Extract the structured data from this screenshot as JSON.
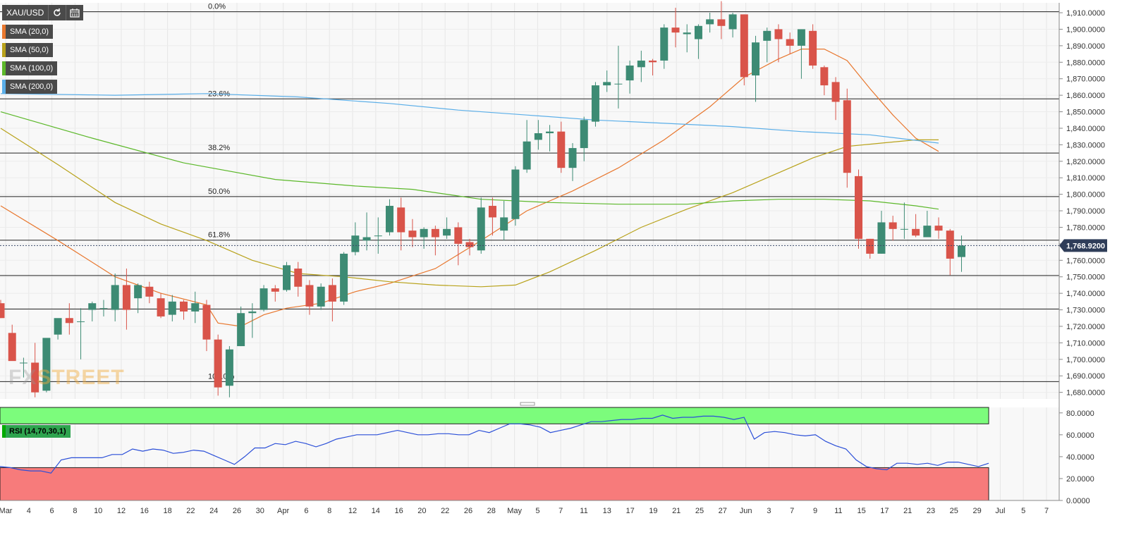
{
  "toolbar": {
    "symbol": "XAU/USD",
    "refresh_icon": "refresh-icon",
    "calendar_icon": "calendar-icon"
  },
  "indicators": [
    {
      "label": "SMA (20,0)",
      "color": "#e8772e"
    },
    {
      "label": "SMA (50,0)",
      "color": "#b8a21a"
    },
    {
      "label": "SMA (100,0)",
      "color": "#5cb82a"
    },
    {
      "label": "SMA (200,0)",
      "color": "#5aaee8"
    }
  ],
  "watermark": {
    "part1": "FX",
    "part2": "STREET"
  },
  "rsi_label": "RSI (14,70,30,1)",
  "chart_data": [
    {
      "type": "candlestick",
      "title": "XAU/USD",
      "ylim": [
        1676,
        1916
      ],
      "y_ticks": [
        "1,680.0000",
        "1,690.0000",
        "1,700.0000",
        "1,710.0000",
        "1,720.0000",
        "1,730.0000",
        "1,740.0000",
        "1,750.0000",
        "1,760.0000",
        "1,770.0000",
        "1,780.0000",
        "1,790.0000",
        "1,800.0000",
        "1,810.0000",
        "1,820.0000",
        "1,830.0000",
        "1,840.0000",
        "1,850.0000",
        "1,860.0000",
        "1,870.0000",
        "1,880.0000",
        "1,890.0000",
        "1,900.0000",
        "1,910.0000"
      ],
      "x_ticks": [
        "Mar",
        "4",
        "6",
        "8",
        "10",
        "12",
        "16",
        "18",
        "22",
        "24",
        "26",
        "30",
        "Apr",
        "6",
        "8",
        "12",
        "14",
        "16",
        "20",
        "22",
        "26",
        "28",
        "May",
        "5",
        "7",
        "11",
        "13",
        "17",
        "19",
        "21",
        "25",
        "27",
        "Jun",
        "3",
        "7",
        "9",
        "11",
        "15",
        "17",
        "21",
        "23",
        "25",
        "29",
        "Jul",
        "5",
        "7"
      ],
      "current_price_label": "1,768.9200",
      "current_price": 1768.92,
      "fibonacci": [
        {
          "label": "0.0%",
          "value": 1910.6
        },
        {
          "label": "23.6%",
          "value": 1857.8
        },
        {
          "label": "38.2%",
          "value": 1825.0
        },
        {
          "label": "50.0%",
          "value": 1798.6
        },
        {
          "label": "61.8%",
          "value": 1772.2
        },
        {
          "label": "",
          "value": 1750.8
        },
        {
          "label": "",
          "value": 1730.5
        },
        {
          "label": "100.0%",
          "value": 1686.5
        }
      ],
      "candles": [
        {
          "o": 1734,
          "h": 1736,
          "l": 1725,
          "c": 1725
        },
        {
          "o": 1716,
          "h": 1721,
          "l": 1700,
          "c": 1699
        },
        {
          "o": 1698,
          "h": 1701,
          "l": 1689,
          "c": 1698
        },
        {
          "o": 1698,
          "h": 1710,
          "l": 1677,
          "c": 1680
        },
        {
          "o": 1681,
          "h": 1712,
          "l": 1680,
          "c": 1713
        },
        {
          "o": 1715,
          "h": 1723,
          "l": 1712,
          "c": 1725
        },
        {
          "o": 1725,
          "h": 1734,
          "l": 1715,
          "c": 1722
        },
        {
          "o": 1723,
          "h": 1731,
          "l": 1700,
          "c": 1723
        },
        {
          "o": 1730,
          "h": 1735,
          "l": 1723,
          "c": 1734
        },
        {
          "o": 1731,
          "h": 1736,
          "l": 1726,
          "c": 1731
        },
        {
          "o": 1730,
          "h": 1752,
          "l": 1723,
          "c": 1745
        },
        {
          "o": 1745,
          "h": 1755,
          "l": 1718,
          "c": 1730
        },
        {
          "o": 1737,
          "h": 1746,
          "l": 1728,
          "c": 1745
        },
        {
          "o": 1744,
          "h": 1747,
          "l": 1734,
          "c": 1738
        },
        {
          "o": 1737,
          "h": 1740,
          "l": 1725,
          "c": 1726
        },
        {
          "o": 1727,
          "h": 1739,
          "l": 1723,
          "c": 1735
        },
        {
          "o": 1735,
          "h": 1736,
          "l": 1724,
          "c": 1729
        },
        {
          "o": 1729,
          "h": 1741,
          "l": 1722,
          "c": 1734
        },
        {
          "o": 1733,
          "h": 1736,
          "l": 1705,
          "c": 1712
        },
        {
          "o": 1712,
          "h": 1715,
          "l": 1678,
          "c": 1683
        },
        {
          "o": 1684,
          "h": 1708,
          "l": 1677,
          "c": 1706
        },
        {
          "o": 1708,
          "h": 1732,
          "l": 1708,
          "c": 1728
        },
        {
          "o": 1728,
          "h": 1734,
          "l": 1713,
          "c": 1729
        },
        {
          "o": 1730,
          "h": 1745,
          "l": 1729,
          "c": 1743
        },
        {
          "o": 1743,
          "h": 1745,
          "l": 1735,
          "c": 1741
        },
        {
          "o": 1742,
          "h": 1759,
          "l": 1741,
          "c": 1757
        },
        {
          "o": 1755,
          "h": 1759,
          "l": 1738,
          "c": 1744
        },
        {
          "o": 1745,
          "h": 1748,
          "l": 1727,
          "c": 1732
        },
        {
          "o": 1732,
          "h": 1746,
          "l": 1730,
          "c": 1744
        },
        {
          "o": 1745,
          "h": 1749,
          "l": 1723,
          "c": 1735
        },
        {
          "o": 1735,
          "h": 1765,
          "l": 1733,
          "c": 1764
        },
        {
          "o": 1765,
          "h": 1783,
          "l": 1763,
          "c": 1775
        },
        {
          "o": 1772,
          "h": 1789,
          "l": 1766,
          "c": 1774
        },
        {
          "o": 1775,
          "h": 1786,
          "l": 1764,
          "c": 1775
        },
        {
          "o": 1777,
          "h": 1797,
          "l": 1775,
          "c": 1793
        },
        {
          "o": 1792,
          "h": 1798,
          "l": 1766,
          "c": 1777
        },
        {
          "o": 1778,
          "h": 1785,
          "l": 1768,
          "c": 1774
        },
        {
          "o": 1774,
          "h": 1780,
          "l": 1767,
          "c": 1779
        },
        {
          "o": 1779,
          "h": 1781,
          "l": 1763,
          "c": 1774
        },
        {
          "o": 1775,
          "h": 1786,
          "l": 1773,
          "c": 1779
        },
        {
          "o": 1780,
          "h": 1783,
          "l": 1757,
          "c": 1770
        },
        {
          "o": 1771,
          "h": 1773,
          "l": 1763,
          "c": 1768
        },
        {
          "o": 1766,
          "h": 1798,
          "l": 1764,
          "c": 1792
        },
        {
          "o": 1793,
          "h": 1798,
          "l": 1775,
          "c": 1786
        },
        {
          "o": 1778,
          "h": 1796,
          "l": 1772,
          "c": 1786
        },
        {
          "o": 1785,
          "h": 1817,
          "l": 1781,
          "c": 1815
        },
        {
          "o": 1815,
          "h": 1845,
          "l": 1813,
          "c": 1832
        },
        {
          "o": 1833,
          "h": 1845,
          "l": 1827,
          "c": 1837
        },
        {
          "o": 1837,
          "h": 1842,
          "l": 1826,
          "c": 1838
        },
        {
          "o": 1838,
          "h": 1844,
          "l": 1813,
          "c": 1816
        },
        {
          "o": 1816,
          "h": 1831,
          "l": 1808,
          "c": 1828
        },
        {
          "o": 1828,
          "h": 1847,
          "l": 1820,
          "c": 1845
        },
        {
          "o": 1844,
          "h": 1868,
          "l": 1841,
          "c": 1866
        },
        {
          "o": 1866,
          "h": 1875,
          "l": 1862,
          "c": 1868
        },
        {
          "o": 1867,
          "h": 1890,
          "l": 1852,
          "c": 1867
        },
        {
          "o": 1869,
          "h": 1881,
          "l": 1861,
          "c": 1878
        },
        {
          "o": 1877,
          "h": 1887,
          "l": 1868,
          "c": 1881
        },
        {
          "o": 1881,
          "h": 1882,
          "l": 1872,
          "c": 1880
        },
        {
          "o": 1881,
          "h": 1903,
          "l": 1876,
          "c": 1901
        },
        {
          "o": 1901,
          "h": 1913,
          "l": 1889,
          "c": 1898
        },
        {
          "o": 1897,
          "h": 1903,
          "l": 1886,
          "c": 1898
        },
        {
          "o": 1894,
          "h": 1903,
          "l": 1882,
          "c": 1902
        },
        {
          "o": 1903,
          "h": 1910,
          "l": 1898,
          "c": 1906
        },
        {
          "o": 1906,
          "h": 1917,
          "l": 1894,
          "c": 1902
        },
        {
          "o": 1900,
          "h": 1910,
          "l": 1895,
          "c": 1909
        },
        {
          "o": 1909,
          "h": 1909,
          "l": 1866,
          "c": 1871
        },
        {
          "o": 1872,
          "h": 1896,
          "l": 1856,
          "c": 1892
        },
        {
          "o": 1893,
          "h": 1901,
          "l": 1880,
          "c": 1899
        },
        {
          "o": 1900,
          "h": 1903,
          "l": 1880,
          "c": 1894
        },
        {
          "o": 1894,
          "h": 1898,
          "l": 1885,
          "c": 1890
        },
        {
          "o": 1890,
          "h": 1900,
          "l": 1870,
          "c": 1900
        },
        {
          "o": 1899,
          "h": 1903,
          "l": 1876,
          "c": 1878
        },
        {
          "o": 1877,
          "h": 1878,
          "l": 1860,
          "c": 1866
        },
        {
          "o": 1868,
          "h": 1871,
          "l": 1845,
          "c": 1856
        },
        {
          "o": 1857,
          "h": 1864,
          "l": 1804,
          "c": 1813
        },
        {
          "o": 1811,
          "h": 1815,
          "l": 1767,
          "c": 1773
        },
        {
          "o": 1773,
          "h": 1773,
          "l": 1761,
          "c": 1764
        },
        {
          "o": 1764,
          "h": 1790,
          "l": 1764,
          "c": 1783
        },
        {
          "o": 1783,
          "h": 1787,
          "l": 1772,
          "c": 1779
        },
        {
          "o": 1779,
          "h": 1795,
          "l": 1773,
          "c": 1779
        },
        {
          "o": 1779,
          "h": 1788,
          "l": 1774,
          "c": 1775
        },
        {
          "o": 1774,
          "h": 1790,
          "l": 1774,
          "c": 1781
        },
        {
          "o": 1781,
          "h": 1786,
          "l": 1773,
          "c": 1778
        },
        {
          "o": 1778,
          "h": 1779,
          "l": 1751,
          "c": 1761
        },
        {
          "o": 1762,
          "h": 1775,
          "l": 1753,
          "c": 1768.92
        }
      ],
      "sma": [
        {
          "name": "SMA (20,0)",
          "color": "#e8772e",
          "points": [
            [
              0,
              1793
            ],
            [
              5,
              1772
            ],
            [
              10,
              1750
            ],
            [
              14,
              1740
            ],
            [
              18,
              1733
            ],
            [
              19,
              1722
            ],
            [
              21,
              1720
            ],
            [
              23,
              1727
            ],
            [
              25,
              1731
            ],
            [
              28,
              1734
            ],
            [
              31,
              1741
            ],
            [
              34,
              1746
            ],
            [
              38,
              1755
            ],
            [
              42,
              1772
            ],
            [
              46,
              1790
            ],
            [
              50,
              1802
            ],
            [
              54,
              1816
            ],
            [
              58,
              1833
            ],
            [
              62,
              1853
            ],
            [
              65,
              1871
            ],
            [
              68,
              1882
            ],
            [
              70,
              1888
            ],
            [
              72,
              1888
            ],
            [
              74,
              1881
            ],
            [
              76,
              1864
            ],
            [
              78,
              1848
            ],
            [
              80,
              1834
            ],
            [
              82,
              1826
            ]
          ]
        },
        {
          "name": "SMA (50,0)",
          "color": "#b8a21a",
          "points": [
            [
              0,
              1840
            ],
            [
              5,
              1818
            ],
            [
              10,
              1795
            ],
            [
              14,
              1782
            ],
            [
              18,
              1772
            ],
            [
              22,
              1760
            ],
            [
              26,
              1752
            ],
            [
              30,
              1750
            ],
            [
              34,
              1747
            ],
            [
              38,
              1745
            ],
            [
              42,
              1744
            ],
            [
              45,
              1745
            ],
            [
              48,
              1753
            ],
            [
              52,
              1766
            ],
            [
              56,
              1780
            ],
            [
              60,
              1791
            ],
            [
              64,
              1801
            ],
            [
              68,
              1813
            ],
            [
              71,
              1822
            ],
            [
              74,
              1829
            ],
            [
              77,
              1831
            ],
            [
              80,
              1833
            ],
            [
              82,
              1833
            ]
          ]
        },
        {
          "name": "SMA (100,0)",
          "color": "#5cb82a",
          "points": [
            [
              0,
              1850
            ],
            [
              8,
              1834
            ],
            [
              16,
              1819
            ],
            [
              24,
              1809
            ],
            [
              31,
              1805
            ],
            [
              36,
              1803
            ],
            [
              42,
              1797
            ],
            [
              48,
              1795
            ],
            [
              54,
              1794
            ],
            [
              60,
              1794
            ],
            [
              64,
              1796
            ],
            [
              68,
              1797
            ],
            [
              72,
              1797
            ],
            [
              76,
              1796
            ],
            [
              80,
              1793
            ],
            [
              82,
              1791
            ]
          ]
        },
        {
          "name": "SMA (200,0)",
          "color": "#5aaee8",
          "points": [
            [
              0,
              1861
            ],
            [
              10,
              1860
            ],
            [
              18,
              1861
            ],
            [
              26,
              1859
            ],
            [
              34,
              1855
            ],
            [
              40,
              1851
            ],
            [
              46,
              1848
            ],
            [
              52,
              1845
            ],
            [
              58,
              1843
            ],
            [
              64,
              1841
            ],
            [
              70,
              1838
            ],
            [
              76,
              1836
            ],
            [
              82,
              1831
            ]
          ]
        }
      ]
    },
    {
      "type": "line",
      "title": "RSI (14,70,30,1)",
      "ylim": [
        0,
        85
      ],
      "y_ticks": [
        "0.0000",
        "20.0000",
        "40.0000",
        "60.0000",
        "80.0000"
      ],
      "overbought": 70,
      "oversold": 30,
      "series": [
        {
          "name": "RSI (14,70,30,1)",
          "color": "#2b4fd8",
          "values": [
            31,
            30,
            28,
            27,
            27,
            25,
            37,
            39,
            39,
            39,
            39,
            42,
            42,
            47,
            45,
            47,
            46,
            43,
            44,
            46,
            45,
            41,
            37,
            33,
            40,
            48,
            48,
            52,
            51,
            54,
            52,
            49,
            52,
            56,
            58,
            60,
            60,
            60,
            62,
            64,
            62,
            60,
            60,
            61,
            61,
            60,
            60,
            64,
            62,
            66,
            70,
            70,
            69,
            67,
            62,
            64,
            66,
            69,
            72,
            72,
            73,
            74,
            74,
            75,
            75,
            78,
            75,
            76,
            76,
            77,
            77,
            76,
            74,
            76,
            56,
            62,
            63,
            62,
            60,
            59,
            60,
            54,
            50,
            47,
            37,
            31,
            29,
            28,
            34,
            34,
            33,
            34,
            32,
            35,
            35,
            33,
            31,
            34
          ]
        }
      ]
    }
  ]
}
